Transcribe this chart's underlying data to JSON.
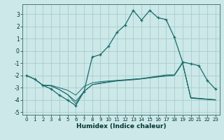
{
  "title": "",
  "xlabel": "Humidex (Indice chaleur)",
  "background_color": "#cce8e8",
  "grid_color": "#aacccc",
  "line_color": "#1a6b6b",
  "xlim": [
    -0.5,
    23.5
  ],
  "ylim": [
    -5.2,
    3.8
  ],
  "yticks": [
    -5,
    -4,
    -3,
    -2,
    -1,
    0,
    1,
    2,
    3
  ],
  "xticks": [
    0,
    1,
    2,
    3,
    4,
    5,
    6,
    7,
    8,
    9,
    10,
    11,
    12,
    13,
    14,
    15,
    16,
    17,
    18,
    19,
    20,
    21,
    22,
    23
  ],
  "line1_x": [
    0,
    1,
    2,
    3,
    4,
    5,
    6,
    7,
    8,
    9,
    10,
    11,
    12,
    13,
    14,
    15,
    16,
    17,
    18,
    19,
    20,
    21,
    22,
    23
  ],
  "line1_y": [
    -2.0,
    -2.3,
    -2.8,
    -3.1,
    -3.6,
    -4.0,
    -4.45,
    -3.3,
    -0.5,
    -0.3,
    0.4,
    1.5,
    2.1,
    3.3,
    2.5,
    3.3,
    2.7,
    2.55,
    1.1,
    -0.9,
    -1.05,
    -1.2,
    -2.4,
    -3.1
  ],
  "line2_x": [
    0,
    1,
    2,
    3,
    4,
    5,
    6,
    7,
    8,
    9,
    10,
    11,
    12,
    13,
    14,
    15,
    16,
    17,
    18,
    19,
    20,
    21,
    22,
    23
  ],
  "line2_y": [
    -2.0,
    -2.3,
    -2.8,
    -2.8,
    -3.0,
    -3.2,
    -3.6,
    -2.9,
    -2.6,
    -2.5,
    -2.45,
    -2.4,
    -2.35,
    -2.3,
    -2.25,
    -2.15,
    -2.05,
    -1.95,
    -1.95,
    -0.95,
    -3.85,
    -3.9,
    -3.95,
    -4.0
  ],
  "line3_x": [
    0,
    1,
    2,
    3,
    4,
    5,
    6,
    7,
    8,
    9,
    10,
    11,
    12,
    13,
    14,
    15,
    16,
    17,
    18,
    19,
    20,
    21,
    22,
    23
  ],
  "line3_y": [
    -2.0,
    -2.3,
    -2.8,
    -2.85,
    -3.15,
    -3.55,
    -4.1,
    -3.3,
    -2.75,
    -2.65,
    -2.55,
    -2.45,
    -2.4,
    -2.35,
    -2.28,
    -2.2,
    -2.12,
    -2.05,
    -2.0,
    -1.0,
    -3.82,
    -3.88,
    -3.93,
    -3.98
  ],
  "line4_x": [
    2,
    3,
    4,
    5,
    6,
    7,
    8,
    9,
    10,
    11,
    12,
    13,
    14,
    15,
    16,
    17,
    18,
    19,
    20,
    21,
    22,
    23
  ],
  "line4_y": [
    -2.8,
    -2.85,
    -3.15,
    -3.55,
    -4.3,
    -3.3,
    -2.75,
    -2.6,
    -2.5,
    -2.42,
    -2.38,
    -2.32,
    -2.27,
    -2.18,
    -2.1,
    -2.02,
    -1.98,
    -0.98,
    -3.8,
    -3.86,
    -3.92,
    -3.97
  ]
}
